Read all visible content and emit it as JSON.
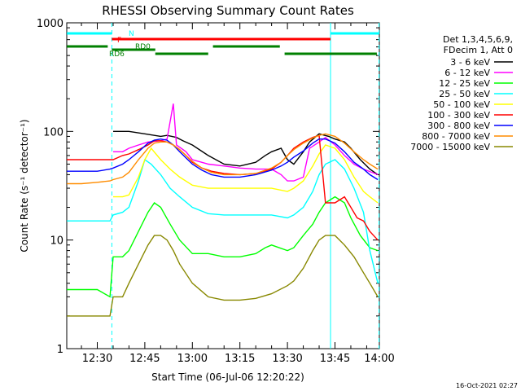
{
  "chart_data": {
    "type": "line",
    "title": "RHESSI Observing Summary Count Rates",
    "xlabel": "Start Time (06-Jul-06 12:20:22)",
    "ylabel": "Count Rate (s⁻¹ detector⁻¹)",
    "yscale": "log",
    "ylim": [
      1,
      1000
    ],
    "xlim_minutes": [
      740.367,
      839.0
    ],
    "x_ticks": [
      {
        "m": 750,
        "label": "12:30"
      },
      {
        "m": 765,
        "label": "12:45"
      },
      {
        "m": 780,
        "label": "13:00"
      },
      {
        "m": 795,
        "label": "13:15"
      },
      {
        "m": 810,
        "label": "13:30"
      },
      {
        "m": 825,
        "label": "13:45"
      },
      {
        "m": 840,
        "label": "14:00"
      }
    ],
    "y_ticks": [
      {
        "v": 1,
        "label": "1"
      },
      {
        "v": 10,
        "label": "10"
      },
      {
        "v": 100,
        "label": "100"
      },
      {
        "v": 1000,
        "label": "1000"
      }
    ],
    "legend_header": [
      "Det 1,3,4,5,6,9,",
      "FDecim 1, Att 0"
    ],
    "legend_position": "right",
    "series": [
      {
        "name": "3 - 6 keV",
        "color": "#000000",
        "x": [
          740.4,
          754,
          755,
          760,
          765,
          770,
          772,
          775,
          777,
          780,
          785,
          790,
          795,
          800,
          803,
          805,
          808,
          810,
          812,
          815,
          817,
          820,
          823,
          825,
          828,
          830,
          833,
          836,
          838.5
        ],
        "values": [
          null,
          null,
          100,
          100,
          95,
          90,
          92,
          88,
          82,
          75,
          60,
          50,
          48,
          52,
          60,
          65,
          70,
          55,
          50,
          65,
          80,
          95,
          90,
          85,
          80,
          70,
          55,
          45,
          40
        ]
      },
      {
        "name": "6 - 12 keV",
        "color": "#ff00ff",
        "x": [
          740.4,
          754,
          755,
          758,
          760,
          763,
          766,
          770,
          772,
          774,
          775,
          778,
          780,
          785,
          790,
          795,
          800,
          803,
          805,
          808,
          810,
          812,
          815,
          817,
          820,
          822,
          825,
          828,
          831,
          834,
          838.5
        ],
        "values": [
          null,
          null,
          65,
          65,
          70,
          75,
          80,
          82,
          85,
          180,
          75,
          65,
          55,
          50,
          48,
          46,
          45,
          45,
          45,
          40,
          35,
          35,
          38,
          70,
          80,
          88,
          75,
          60,
          50,
          45,
          40
        ]
      },
      {
        "name": "12 - 25 keV",
        "color": "#00ff00",
        "x": [
          740.4,
          747,
          750,
          754,
          755,
          758,
          760,
          763,
          766,
          768,
          770,
          773,
          776,
          780,
          785,
          790,
          795,
          800,
          803,
          805,
          810,
          812,
          815,
          818,
          820,
          822,
          825,
          828,
          830,
          833,
          836,
          838.5
        ],
        "values": [
          3.5,
          3.5,
          3.5,
          3,
          7,
          7,
          8,
          12,
          18,
          22,
          20,
          14,
          10,
          7.5,
          7.5,
          7,
          7,
          7.5,
          8.5,
          9,
          8,
          8.5,
          11,
          14,
          18,
          22,
          25,
          22,
          16,
          11,
          8.5,
          8
        ]
      },
      {
        "name": "25 - 50 keV",
        "color": "#00ffff",
        "x": [
          740.4,
          750,
          754,
          755,
          758,
          760,
          763,
          765,
          767,
          770,
          773,
          776,
          780,
          785,
          790,
          795,
          800,
          805,
          810,
          812,
          815,
          818,
          820,
          822,
          825,
          828,
          831,
          834,
          836,
          838.5
        ],
        "values": [
          15,
          15,
          15,
          17,
          18,
          20,
          35,
          55,
          50,
          40,
          30,
          25,
          20,
          17.5,
          17,
          17,
          17,
          17,
          16,
          17,
          20,
          28,
          40,
          50,
          55,
          45,
          30,
          18,
          8,
          4
        ]
      },
      {
        "name": "50 - 100 keV",
        "color": "#ffff00",
        "x": [
          740.4,
          754,
          755,
          758,
          760,
          763,
          765,
          767,
          770,
          773,
          776,
          780,
          785,
          790,
          795,
          800,
          805,
          810,
          812,
          815,
          818,
          820,
          822,
          825,
          828,
          831,
          834,
          836,
          838.5
        ],
        "values": [
          null,
          null,
          25,
          25,
          26,
          38,
          55,
          70,
          55,
          45,
          38,
          32,
          30,
          30,
          30,
          30,
          30,
          28,
          30,
          35,
          48,
          62,
          75,
          70,
          55,
          38,
          28,
          25,
          22
        ]
      },
      {
        "name": "100 - 300 keV",
        "color": "#ff0000",
        "x": [
          740.4,
          745,
          750,
          754,
          755,
          758,
          760,
          763,
          766,
          768,
          770,
          772,
          774,
          776,
          778,
          780,
          783,
          786,
          790,
          795,
          800,
          805,
          808,
          810,
          812,
          815,
          818,
          820,
          822,
          825,
          828,
          830,
          832,
          834,
          836,
          838.5
        ],
        "values": [
          55,
          55,
          55,
          55,
          55,
          60,
          62,
          68,
          75,
          82,
          82,
          80,
          75,
          68,
          60,
          52,
          46,
          43,
          41,
          40,
          41,
          45,
          52,
          60,
          70,
          80,
          88,
          92,
          22,
          22,
          25,
          20,
          16,
          15,
          12,
          10
        ]
      },
      {
        "name": "300 - 800 keV",
        "color": "#0000ff",
        "x": [
          740.4,
          745,
          750,
          754,
          755,
          758,
          760,
          763,
          766,
          768,
          770,
          772,
          774,
          776,
          778,
          780,
          783,
          786,
          790,
          795,
          800,
          805,
          808,
          810,
          812,
          815,
          818,
          820,
          822,
          825,
          828,
          831,
          834,
          836,
          838.5
        ],
        "values": [
          43,
          43,
          43,
          45,
          46,
          50,
          55,
          65,
          78,
          83,
          85,
          83,
          75,
          65,
          57,
          50,
          44,
          40,
          38,
          38,
          40,
          44,
          48,
          52,
          58,
          66,
          78,
          85,
          85,
          78,
          65,
          52,
          45,
          40,
          36
        ]
      },
      {
        "name": "800 - 7000 keV",
        "color": "#ff8c00",
        "x": [
          740.4,
          745,
          750,
          754,
          755,
          758,
          760,
          763,
          766,
          768,
          770,
          772,
          774,
          776,
          778,
          780,
          783,
          786,
          790,
          795,
          800,
          805,
          808,
          810,
          812,
          815,
          818,
          820,
          822,
          825,
          828,
          831,
          834,
          836,
          838.5
        ],
        "values": [
          33,
          33,
          34,
          35,
          36,
          38,
          42,
          55,
          70,
          78,
          80,
          80,
          75,
          68,
          60,
          53,
          46,
          42,
          40,
          40,
          41,
          46,
          52,
          60,
          68,
          78,
          87,
          92,
          95,
          90,
          78,
          65,
          55,
          50,
          45
        ]
      },
      {
        "name": "7000 - 15000 keV",
        "color": "#888800",
        "x": [
          740.4,
          747,
          750,
          754,
          755,
          758,
          760,
          763,
          766,
          768,
          770,
          772,
          774,
          776,
          780,
          785,
          790,
          795,
          800,
          805,
          810,
          812,
          815,
          818,
          820,
          822,
          825,
          828,
          831,
          834,
          836,
          838.5
        ],
        "values": [
          2,
          2,
          2,
          2,
          3,
          3,
          4,
          6,
          9,
          11,
          11,
          10,
          8,
          6,
          4,
          3,
          2.8,
          2.8,
          2.9,
          3.2,
          3.8,
          4.2,
          5.5,
          8,
          10,
          11,
          11,
          9,
          7,
          5,
          4,
          3
        ]
      }
    ],
    "status_bars": [
      {
        "label": "N",
        "color": "#00ffff",
        "segments": [
          [
            740.4,
            754.6
          ],
          [
            823.6,
            838.9
          ]
        ]
      },
      {
        "label": "F",
        "color": "#ff0000",
        "segments": [
          [
            754.6,
            823.6
          ]
        ]
      },
      {
        "label": "RD0",
        "color": "#008000",
        "segments": [
          [
            754.6,
            768.3
          ],
          [
            768.3,
            785
          ],
          [
            786.5,
            807.6
          ]
        ]
      },
      {
        "label": "RD6",
        "color": "#008000",
        "segments": [
          [
            740.4,
            753.3
          ],
          [
            809.1,
            838.2
          ]
        ]
      }
    ],
    "vertical_markers": [
      754.6,
      823.6,
      838.9
    ],
    "footer_date": "16-Oct-2021 02:27"
  }
}
